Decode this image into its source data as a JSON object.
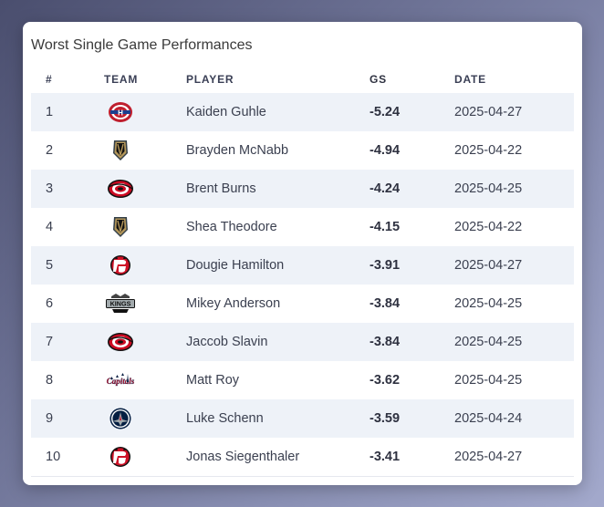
{
  "title": "Worst Single Game Performances",
  "columns": {
    "rank": "#",
    "team": "TEAM",
    "player": "PLAYER",
    "gs": "GS",
    "date": "DATE"
  },
  "rows": [
    {
      "rank": "1",
      "team": "canadiens",
      "player": "Kaiden Guhle",
      "gs": "-5.24",
      "date": "2025-04-27"
    },
    {
      "rank": "2",
      "team": "golden-knights",
      "player": "Brayden McNabb",
      "gs": "-4.94",
      "date": "2025-04-22"
    },
    {
      "rank": "3",
      "team": "hurricanes",
      "player": "Brent Burns",
      "gs": "-4.24",
      "date": "2025-04-25"
    },
    {
      "rank": "4",
      "team": "golden-knights",
      "player": "Shea Theodore",
      "gs": "-4.15",
      "date": "2025-04-22"
    },
    {
      "rank": "5",
      "team": "devils",
      "player": "Dougie Hamilton",
      "gs": "-3.91",
      "date": "2025-04-27"
    },
    {
      "rank": "6",
      "team": "kings",
      "player": "Mikey Anderson",
      "gs": "-3.84",
      "date": "2025-04-25"
    },
    {
      "rank": "7",
      "team": "hurricanes",
      "player": "Jaccob Slavin",
      "gs": "-3.84",
      "date": "2025-04-25"
    },
    {
      "rank": "8",
      "team": "capitals",
      "player": "Matt Roy",
      "gs": "-3.62",
      "date": "2025-04-25"
    },
    {
      "rank": "9",
      "team": "jets",
      "player": "Luke Schenn",
      "gs": "-3.59",
      "date": "2025-04-24"
    },
    {
      "rank": "10",
      "team": "devils",
      "player": "Jonas Siegenthaler",
      "gs": "-3.41",
      "date": "2025-04-27"
    }
  ],
  "logo_text": {
    "kings": "KINGS",
    "capitals": "Capitals"
  }
}
